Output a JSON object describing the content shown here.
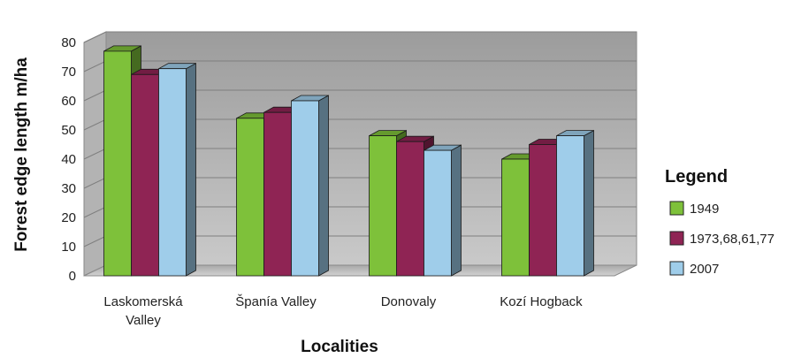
{
  "chart_data": {
    "type": "bar",
    "categories": [
      "Laskomerská Valley",
      "Španía Valley",
      "Donovaly",
      "Kozí Hogback"
    ],
    "category_lines": [
      [
        "Laskomerská",
        "Valley"
      ],
      [
        "Španía Valley"
      ],
      [
        "Donovaly"
      ],
      [
        "Kozí Hogback"
      ]
    ],
    "series": [
      {
        "name": "1949",
        "values": [
          77,
          54,
          48,
          40
        ],
        "color": "#7ec13a"
      },
      {
        "name": "1973,68,61,77",
        "values": [
          69,
          56,
          46,
          45
        ],
        "color": "#8f2454"
      },
      {
        "name": "2007",
        "values": [
          71,
          60,
          43,
          48
        ],
        "color": "#9fcdea"
      }
    ],
    "xlabel": "Localities",
    "ylabel": "Forest edge length m/ha",
    "ylim": [
      0,
      80
    ],
    "yticks": [
      "0",
      "10",
      "20",
      "30",
      "40",
      "50",
      "60",
      "70",
      "80"
    ],
    "grid": true,
    "chart_style": "3d-clustered-bar",
    "legend_title": "Legend",
    "legend_position": "right"
  }
}
